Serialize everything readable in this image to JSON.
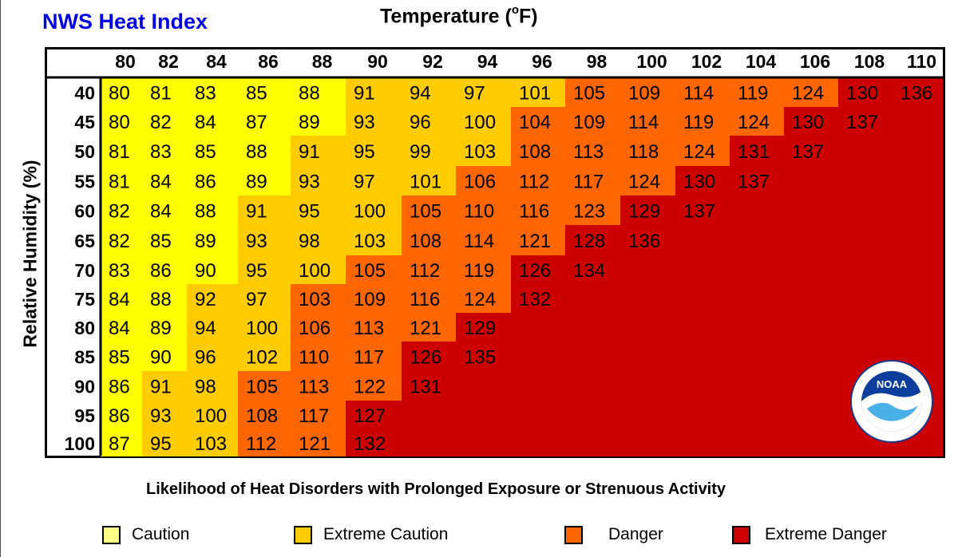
{
  "title": "NWS Heat Index",
  "colors": {
    "brand": "#0000e0",
    "categories": {
      "caution": "#ffff00",
      "extreme_caution": "#ffcc00",
      "danger": "#ff6600",
      "extreme_danger": "#cc0000"
    }
  },
  "logo": {
    "icon": "noaa-logo-icon",
    "text": "NOAA"
  },
  "legend": {
    "title": "Likelihood of Heat Disorders with Prolonged Exposure or Strenuous Activity",
    "items": [
      {
        "label": "Caution",
        "color": "#ffff88"
      },
      {
        "label": "Extreme Caution",
        "color": "#ffcc00"
      },
      {
        "label": "Danger",
        "color": "#ff6600"
      },
      {
        "label": "Extreme Danger",
        "color": "#cc0000"
      }
    ]
  },
  "chart_data": {
    "type": "heatmap",
    "title": "NWS Heat Index",
    "xlabel_main": "Temperature (",
    "xlabel_degree": "o",
    "xlabel_tail": "F)",
    "ylabel": "Relative Humidity (%)",
    "x": [
      "80",
      "82",
      "84",
      "86",
      "88",
      "90",
      "92",
      "94",
      "96",
      "98",
      "100",
      "102",
      "104",
      "106",
      "108",
      "110"
    ],
    "y": [
      "40",
      "45",
      "50",
      "55",
      "60",
      "65",
      "70",
      "75",
      "80",
      "85",
      "90",
      "95",
      "100"
    ],
    "values": [
      [
        80,
        81,
        83,
        85,
        88,
        91,
        94,
        97,
        101,
        105,
        109,
        114,
        119,
        124,
        130,
        136
      ],
      [
        80,
        82,
        84,
        87,
        89,
        93,
        96,
        100,
        104,
        109,
        114,
        119,
        124,
        130,
        137,
        null
      ],
      [
        81,
        83,
        85,
        88,
        91,
        95,
        99,
        103,
        108,
        113,
        118,
        124,
        131,
        137,
        null,
        null
      ],
      [
        81,
        84,
        86,
        89,
        93,
        97,
        101,
        106,
        112,
        117,
        124,
        130,
        137,
        null,
        null,
        null
      ],
      [
        82,
        84,
        88,
        91,
        95,
        100,
        105,
        110,
        116,
        123,
        129,
        137,
        null,
        null,
        null,
        null
      ],
      [
        82,
        85,
        89,
        93,
        98,
        103,
        108,
        114,
        121,
        128,
        136,
        null,
        null,
        null,
        null,
        null
      ],
      [
        83,
        86,
        90,
        95,
        100,
        105,
        112,
        119,
        126,
        134,
        null,
        null,
        null,
        null,
        null,
        null
      ],
      [
        84,
        88,
        92,
        97,
        103,
        109,
        116,
        124,
        132,
        null,
        null,
        null,
        null,
        null,
        null,
        null
      ],
      [
        84,
        89,
        94,
        100,
        106,
        113,
        121,
        129,
        null,
        null,
        null,
        null,
        null,
        null,
        null,
        null
      ],
      [
        85,
        90,
        96,
        102,
        110,
        117,
        126,
        135,
        null,
        null,
        null,
        null,
        null,
        null,
        null,
        null
      ],
      [
        86,
        91,
        98,
        105,
        113,
        122,
        131,
        null,
        null,
        null,
        null,
        null,
        null,
        null,
        null,
        null
      ],
      [
        86,
        93,
        100,
        108,
        117,
        127,
        null,
        null,
        null,
        null,
        null,
        null,
        null,
        null,
        null,
        null
      ],
      [
        87,
        95,
        103,
        112,
        121,
        132,
        null,
        null,
        null,
        null,
        null,
        null,
        null,
        null,
        null,
        null
      ]
    ],
    "categories": [
      [
        0,
        0,
        0,
        0,
        0,
        1,
        1,
        1,
        1,
        2,
        2,
        2,
        2,
        2,
        3,
        3
      ],
      [
        0,
        0,
        0,
        0,
        0,
        1,
        1,
        1,
        2,
        2,
        2,
        2,
        2,
        3,
        3,
        3
      ],
      [
        0,
        0,
        0,
        0,
        1,
        1,
        1,
        1,
        2,
        2,
        2,
        2,
        3,
        3,
        3,
        3
      ],
      [
        0,
        0,
        0,
        0,
        1,
        1,
        1,
        2,
        2,
        2,
        2,
        3,
        3,
        3,
        3,
        3
      ],
      [
        0,
        0,
        0,
        1,
        1,
        1,
        2,
        2,
        2,
        2,
        3,
        3,
        3,
        3,
        3,
        3
      ],
      [
        0,
        0,
        0,
        1,
        1,
        1,
        2,
        2,
        2,
        3,
        3,
        3,
        3,
        3,
        3,
        3
      ],
      [
        0,
        0,
        0,
        1,
        1,
        2,
        2,
        2,
        3,
        3,
        3,
        3,
        3,
        3,
        3,
        3
      ],
      [
        0,
        0,
        1,
        1,
        2,
        2,
        2,
        2,
        3,
        3,
        3,
        3,
        3,
        3,
        3,
        3
      ],
      [
        0,
        0,
        1,
        1,
        2,
        2,
        2,
        3,
        3,
        3,
        3,
        3,
        3,
        3,
        3,
        3
      ],
      [
        0,
        0,
        1,
        1,
        2,
        2,
        3,
        3,
        3,
        3,
        3,
        3,
        3,
        3,
        3,
        3
      ],
      [
        0,
        1,
        1,
        2,
        2,
        2,
        3,
        3,
        3,
        3,
        3,
        3,
        3,
        3,
        3,
        3
      ],
      [
        0,
        1,
        1,
        2,
        2,
        3,
        3,
        3,
        3,
        3,
        3,
        3,
        3,
        3,
        3,
        3
      ],
      [
        0,
        1,
        1,
        2,
        2,
        3,
        3,
        3,
        3,
        3,
        3,
        3,
        3,
        3,
        3,
        3
      ]
    ],
    "category_names": [
      "Caution",
      "Extreme Caution",
      "Danger",
      "Extreme Danger"
    ]
  }
}
